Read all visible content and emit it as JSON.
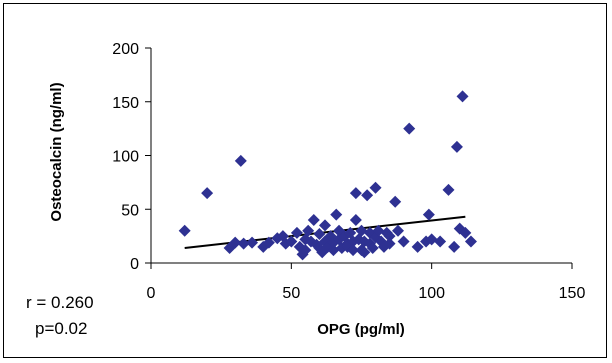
{
  "chart_data": {
    "type": "scatter",
    "title": "",
    "xlabel": "OPG (pg/ml)",
    "ylabel": "Osteocalcin (ng/ml)",
    "xlim": [
      0,
      150
    ],
    "ylim": [
      0,
      200
    ],
    "x_ticks": [
      "0",
      "50",
      "100",
      "150"
    ],
    "y_ticks": [
      "0",
      "50",
      "100",
      "150",
      "200"
    ],
    "grid": false,
    "marker_color": "#2E3192",
    "trendline_color": "#000000",
    "trendline": {
      "x": [
        12,
        112
      ],
      "y": [
        14,
        43
      ]
    },
    "annotations": {
      "r": "r = 0.260",
      "p": "p=0.02"
    },
    "points": [
      [
        12,
        30
      ],
      [
        20,
        65
      ],
      [
        28,
        14
      ],
      [
        30,
        19
      ],
      [
        32,
        95
      ],
      [
        33,
        18
      ],
      [
        36,
        19
      ],
      [
        40,
        15
      ],
      [
        42,
        19
      ],
      [
        45,
        23
      ],
      [
        47,
        25
      ],
      [
        48,
        18
      ],
      [
        50,
        20
      ],
      [
        52,
        28
      ],
      [
        53,
        15
      ],
      [
        54,
        8
      ],
      [
        55,
        22
      ],
      [
        55,
        12
      ],
      [
        56,
        30
      ],
      [
        57,
        20
      ],
      [
        58,
        40
      ],
      [
        59,
        17
      ],
      [
        60,
        14
      ],
      [
        60,
        27
      ],
      [
        61,
        10
      ],
      [
        62,
        20
      ],
      [
        62,
        35
      ],
      [
        63,
        15
      ],
      [
        64,
        25
      ],
      [
        65,
        12
      ],
      [
        65,
        19
      ],
      [
        66,
        45
      ],
      [
        67,
        22
      ],
      [
        67,
        30
      ],
      [
        68,
        14
      ],
      [
        69,
        25
      ],
      [
        70,
        18
      ],
      [
        70,
        15
      ],
      [
        71,
        28
      ],
      [
        72,
        20
      ],
      [
        72,
        12
      ],
      [
        73,
        65
      ],
      [
        73,
        40
      ],
      [
        74,
        22
      ],
      [
        75,
        30
      ],
      [
        75,
        12
      ],
      [
        76,
        10
      ],
      [
        76,
        20
      ],
      [
        77,
        63
      ],
      [
        78,
        28
      ],
      [
        78,
        18
      ],
      [
        79,
        14
      ],
      [
        80,
        70
      ],
      [
        80,
        24
      ],
      [
        81,
        30
      ],
      [
        82,
        20
      ],
      [
        83,
        15
      ],
      [
        84,
        28
      ],
      [
        85,
        18
      ],
      [
        85,
        25
      ],
      [
        87,
        57
      ],
      [
        88,
        30
      ],
      [
        90,
        20
      ],
      [
        92,
        125
      ],
      [
        95,
        15
      ],
      [
        98,
        20
      ],
      [
        99,
        45
      ],
      [
        100,
        22
      ],
      [
        103,
        20
      ],
      [
        106,
        68
      ],
      [
        108,
        15
      ],
      [
        109,
        108
      ],
      [
        110,
        32
      ],
      [
        111,
        155
      ],
      [
        112,
        28
      ],
      [
        114,
        20
      ]
    ]
  }
}
